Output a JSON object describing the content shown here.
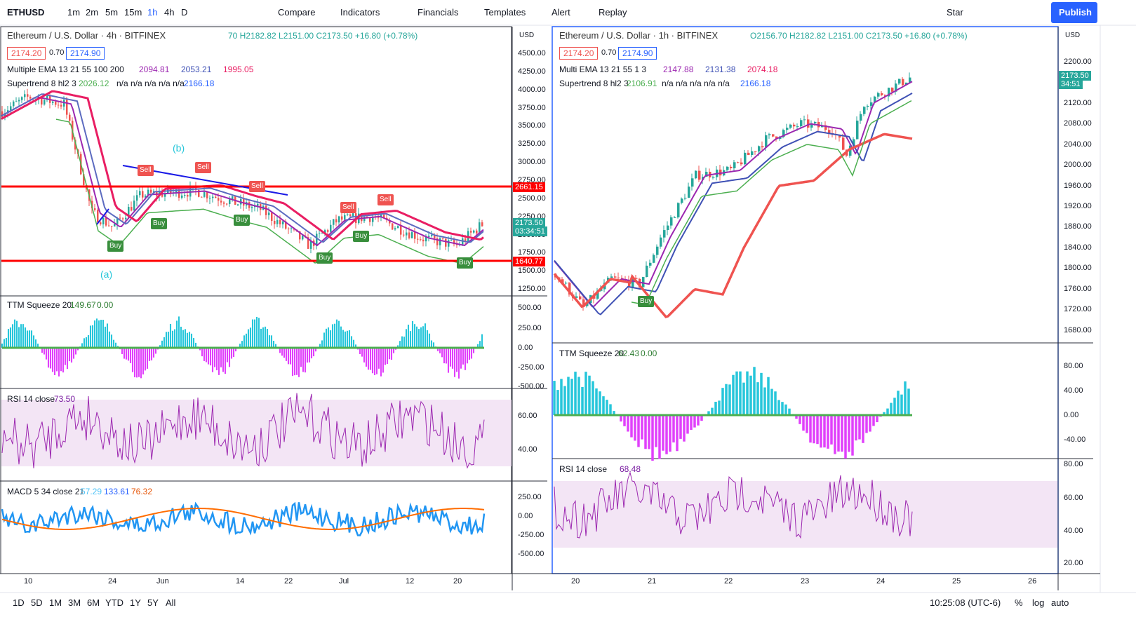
{
  "toolbar": {
    "symbol": "ETHUSD",
    "intervals": [
      "1m",
      "2m",
      "5m",
      "15m",
      "1h",
      "4h",
      "D"
    ],
    "buttons": [
      "Compare",
      "Indicators",
      "Financials",
      "Templates",
      "Alert",
      "Replay"
    ],
    "star": "Star",
    "publish": "Publish"
  },
  "left_chart": {
    "title": "Ethereum / U.S. Dollar · 4h · BITFINEX",
    "ohlc": "70 H2182.82 L2151.00 C2173.50 +16.80 (+0.78%)",
    "bid": "2174.20",
    "spread": "0.70",
    "ask": "2174.90",
    "currency": "USD",
    "ema": {
      "name": "Multiple EMA 13 21 55 100 200",
      "values": [
        "2094.81",
        "2053.21",
        "1995.05"
      ]
    },
    "supertrend": {
      "name": "Supertrend 8 hl2 3",
      "value": "2026.12",
      "na": "n/a n/a n/a n/a n/a",
      "last": "2166.18"
    },
    "price_axis": [
      "4500.00",
      "4250.00",
      "4000.00",
      "3750.00",
      "3500.00",
      "3250.00",
      "3000.00",
      "2750.00",
      "2500.00",
      "2250.00",
      "2000.00",
      "1750.00",
      "1500.00",
      "1250.00"
    ],
    "level_tags": [
      "2661.15",
      "1640.77"
    ],
    "last_price": "2173.50",
    "countdown": "03:34:51",
    "wave_labels": [
      "(b)",
      "(a)"
    ],
    "signals": [
      "Sell",
      "Sell",
      "Sell",
      "Sell",
      "Sell",
      "Buy",
      "Buy",
      "Buy",
      "Buy",
      "Buy",
      "Buy"
    ],
    "ttm": {
      "name": "TTM Squeeze 20",
      "values": [
        "149.67",
        "0.00"
      ],
      "axis": [
        "500.00",
        "250.00",
        "0.00",
        "-250.00",
        "-500.00"
      ]
    },
    "rsi": {
      "name": "RSI 14 close",
      "value": "73.50",
      "axis": [
        "60.00",
        "40.00"
      ]
    },
    "macd": {
      "name": "MACD 5 34 close 21",
      "values": [
        "57.29",
        "133.61",
        "76.32"
      ],
      "axis": [
        "250.00",
        "0.00",
        "-250.00",
        "-500.00"
      ]
    },
    "time_axis": [
      "10",
      "24",
      "Jun",
      "14",
      "22",
      "Jul",
      "12",
      "20"
    ]
  },
  "right_chart": {
    "title": "Ethereum / U.S. Dollar · 1h · BITFINEX",
    "ohlc": "O2156.70 H2182.82 L2151.00 C2173.50 +16.80 (+0.78%)",
    "bid": "2174.20",
    "spread": "0.70",
    "ask": "2174.90",
    "currency": "USD",
    "ema": {
      "name": "Multi EMA 13 21 55 1 3",
      "values": [
        "2147.88",
        "2131.38",
        "2074.18"
      ]
    },
    "supertrend": {
      "name": "Supertrend 8 hl2 3",
      "value": "2106.91",
      "na": "n/a n/a n/a n/a n/a",
      "last": "2166.18"
    },
    "price_axis": [
      "2200.00",
      "2120.00",
      "2080.00",
      "2040.00",
      "2000.00",
      "1960.00",
      "1920.00",
      "1880.00",
      "1840.00",
      "1800.00",
      "1760.00",
      "1720.00",
      "1680.00"
    ],
    "last_price": "2173.50",
    "countdown": "34:51",
    "signals": [
      "Buy"
    ],
    "ttm": {
      "name": "TTM Squeeze 20",
      "values": [
        "62.43",
        "0.00"
      ],
      "axis": [
        "80.00",
        "40.00",
        "0.00",
        "-40.00"
      ]
    },
    "rsi": {
      "name": "RSI 14 close",
      "value": "68.48",
      "axis": [
        "80.00",
        "60.00",
        "40.00",
        "20.00"
      ]
    },
    "time_axis": [
      "20",
      "21",
      "22",
      "23",
      "24",
      "25",
      "26"
    ]
  },
  "bottom_bar": {
    "ranges": [
      "1D",
      "5D",
      "1M",
      "3M",
      "6M",
      "YTD",
      "1Y",
      "5Y",
      "All"
    ],
    "clock": "10:25:08 (UTC-6)",
    "percent": "%",
    "log": "log",
    "auto": "auto"
  }
}
